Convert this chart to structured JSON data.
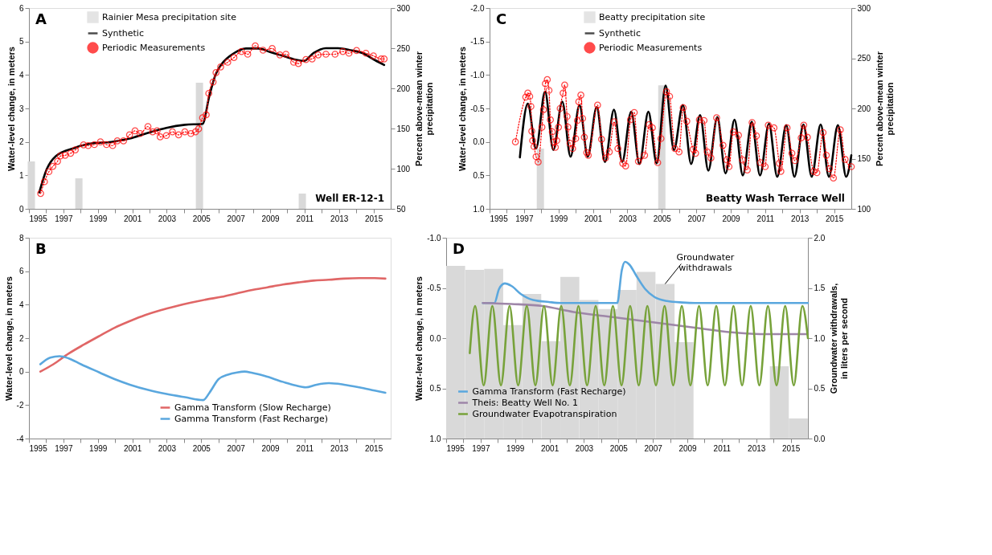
{
  "chart_data": [
    {
      "type": "line",
      "ylabel": "Water-level change, in meters",
      "y2label": "Percent above-mean winter\nprecipitation",
      "annotations": [
        "A",
        "Well ER-12-1"
      ],
      "xlim": [
        1995,
        2016
      ],
      "xticks": [
        1995,
        {
          "value": 1996,
          "label": null
        },
        1997,
        {
          "value": 1998,
          "label": null
        },
        1999,
        {
          "value": 2000,
          "label": null
        },
        2001,
        {
          "value": 2002,
          "label": null
        },
        2003,
        {
          "value": 2004,
          "label": null
        },
        2005,
        {
          "value": 2006,
          "label": null
        },
        2007,
        {
          "value": 2008,
          "label": null
        },
        2009,
        {
          "value": 2010,
          "label": null
        },
        2011,
        {
          "value": 2012,
          "label": null
        },
        2013,
        {
          "value": 2014,
          "label": null
        },
        2015
      ],
      "ylim": [
        0,
        6
      ],
      "yticks": [
        0,
        1,
        2,
        3,
        4,
        5,
        6
      ],
      "y2lim": [
        50,
        300
      ],
      "y2ticks": [
        50,
        100,
        150,
        200,
        250,
        300
      ],
      "legend": "top left",
      "grid": false,
      "series": [
        {
          "name": "Rainier Mesa precipitation site",
          "type": "bar",
          "axis": "y2",
          "color": "#d9d9d9",
          "x": [
            1995.14,
            1997.9,
            2004.9,
            2010.87
          ],
          "values": [
            109,
            88,
            207,
            69
          ]
        },
        {
          "name": "Synthetic",
          "type": "line",
          "color": "#000000",
          "line_style": "solid",
          "marker": "none",
          "x": [
            1995.6,
            1996.03,
            1996.57,
            1997.64,
            1998.7,
            1999.77,
            2000.84,
            2001.9,
            2002.98,
            2004.05,
            2005.08,
            2005.47,
            2005.83,
            2006.18,
            2006.9,
            2007.6,
            2008.32,
            2009.03,
            2009.75,
            2010.46,
            2010.96,
            2011.53,
            2012.24,
            2012.95,
            2013.67,
            2014.38,
            2015.1,
            2015.62
          ],
          "values": [
            0.49,
            1.18,
            1.58,
            1.82,
            1.96,
            2.0,
            2.1,
            2.27,
            2.42,
            2.51,
            2.54,
            3.37,
            4.01,
            4.32,
            4.65,
            4.79,
            4.79,
            4.68,
            4.57,
            4.46,
            4.42,
            4.66,
            4.8,
            4.8,
            4.74,
            4.65,
            4.44,
            4.3
          ]
        },
        {
          "name": "Periodic Measurements",
          "type": "line",
          "color": "#ff0000",
          "line_style": "dotted",
          "marker": "circle",
          "x": [
            1995.68,
            1995.9,
            1996.16,
            1996.39,
            1996.66,
            1996.83,
            1997.1,
            1997.42,
            1997.69,
            1998.17,
            1998.44,
            1998.8,
            1999.15,
            1999.5,
            1999.86,
            2000.13,
            2000.49,
            2000.84,
            2001.16,
            2001.46,
            2001.91,
            2002.18,
            2002.44,
            2002.62,
            2002.98,
            2003.33,
            2003.69,
            2004.05,
            2004.4,
            2004.67,
            2004.85,
            2005.08,
            2005.29,
            2005.44,
            2005.69,
            2005.86,
            2006.13,
            2006.54,
            2006.9,
            2007.34,
            2007.7,
            2008.14,
            2008.59,
            2009.12,
            2009.57,
            2009.92,
            2010.37,
            2010.64,
            2011.08,
            2011.44,
            2011.79,
            2012.24,
            2012.77,
            2013.22,
            2013.58,
            2014.02,
            2014.56,
            2015.0,
            2015.45,
            2015.62
          ],
          "values": [
            0.46,
            0.81,
            1.11,
            1.27,
            1.42,
            1.58,
            1.6,
            1.66,
            1.76,
            1.91,
            1.89,
            1.92,
            2.0,
            1.92,
            1.89,
            2.03,
            2.03,
            2.21,
            2.33,
            2.25,
            2.46,
            2.3,
            2.33,
            2.15,
            2.19,
            2.3,
            2.21,
            2.3,
            2.25,
            2.3,
            2.39,
            2.72,
            2.81,
            3.45,
            3.79,
            4.07,
            4.24,
            4.38,
            4.52,
            4.7,
            4.62,
            4.87,
            4.74,
            4.79,
            4.6,
            4.62,
            4.38,
            4.34,
            4.46,
            4.48,
            4.6,
            4.62,
            4.62,
            4.7,
            4.65,
            4.73,
            4.65,
            4.57,
            4.48,
            4.48
          ]
        }
      ]
    },
    {
      "type": "line",
      "ylabel": "Water-level change, in meters",
      "y2label": "Percent above-mean winter\nprecipitation",
      "annotations": [
        "C",
        "Beatty Wash Terrace Well"
      ],
      "xlim": [
        1995,
        2016
      ],
      "xticks": [
        1995,
        {
          "value": 1996,
          "label": null
        },
        1997,
        {
          "value": 1998,
          "label": null
        },
        1999,
        {
          "value": 2000,
          "label": null
        },
        2001,
        {
          "value": 2002,
          "label": null
        },
        2003,
        {
          "value": 2004,
          "label": null
        },
        2005,
        {
          "value": 2006,
          "label": null
        },
        2007,
        {
          "value": 2008,
          "label": null
        },
        2009,
        {
          "value": 2010,
          "label": null
        },
        2011,
        {
          "value": 2012,
          "label": null
        },
        2013,
        {
          "value": 2014,
          "label": null
        },
        2015
      ],
      "ylim": [
        1.0,
        -2.0
      ],
      "yticks": [
        {
          "value": -2,
          "label": "-2.0"
        },
        {
          "value": -1.5,
          "label": "-1.5"
        },
        {
          "value": -1,
          "label": "-1.0"
        },
        {
          "value": -0.5,
          "label": "-0.5"
        },
        {
          "value": 0,
          "label": "0.0"
        },
        {
          "value": 0.5,
          "label": "0.5"
        },
        {
          "value": 1,
          "label": "1.0"
        }
      ],
      "y2lim": [
        100,
        300
      ],
      "y2ticks": [
        100,
        150,
        200,
        250,
        300
      ],
      "legend": "top",
      "grid": false,
      "series": [
        {
          "name": "Beatty precipitation site",
          "type": "bar",
          "axis": "y2",
          "color": "#d9d9d9",
          "x": [
            1997.95,
            2005.0
          ],
          "values": [
            160,
            223
          ]
        },
        {
          "name": "Synthetic",
          "type": "line",
          "color": "#000000",
          "line_style": "solid",
          "marker": "none",
          "x": [
            1996.76,
            1997.22,
            1997.7,
            1998.22,
            1998.7,
            1999.22,
            1999.7,
            2000.22,
            2000.7,
            2001.22,
            2001.7,
            2002.22,
            2002.7,
            2003.22,
            2003.7,
            2004.22,
            2004.7,
            2005.22,
            2005.7,
            2006.22,
            2006.7,
            2007.22,
            2007.7,
            2008.22,
            2008.7,
            2009.22,
            2009.7,
            2010.22,
            2010.7,
            2011.22,
            2011.7,
            2012.22,
            2012.7,
            2013.22,
            2013.7,
            2014.22,
            2014.7,
            2015.22,
            2015.7,
            2016.0
          ],
          "values": [
            0.23,
            -0.57,
            0.1,
            -0.75,
            0.12,
            -0.6,
            0.22,
            -0.55,
            0.22,
            -0.52,
            0.3,
            -0.48,
            0.3,
            -0.45,
            0.33,
            -0.45,
            0.32,
            -0.84,
            0.12,
            -0.55,
            0.33,
            -0.4,
            0.43,
            -0.37,
            0.47,
            -0.33,
            0.5,
            -0.3,
            0.5,
            -0.27,
            0.52,
            -0.25,
            0.52,
            -0.26,
            0.52,
            -0.26,
            0.52,
            -0.25,
            0.52,
            0.2
          ]
        },
        {
          "name": "Periodic Measurements",
          "type": "line",
          "color": "#ff0000",
          "line_style": "dotted",
          "marker": "circle",
          "x": [
            1996.5,
            1997.1,
            1997.22,
            1997.33,
            1997.4,
            1997.45,
            1997.5,
            1997.58,
            1997.7,
            1997.82,
            1998.04,
            1998.13,
            1998.24,
            1998.35,
            1998.45,
            1998.53,
            1998.64,
            1998.73,
            1998.82,
            1998.9,
            1999.0,
            1999.1,
            1999.27,
            1999.36,
            1999.5,
            1999.55,
            1999.67,
            1999.82,
            2000.0,
            2000.1,
            2000.18,
            2000.3,
            2000.4,
            2000.5,
            2000.64,
            2000.73,
            2001.27,
            2001.5,
            2001.73,
            2001.95,
            2002.24,
            2002.45,
            2002.73,
            2002.9,
            2003.18,
            2003.4,
            2003.64,
            2004.0,
            2004.27,
            2004.45,
            2004.76,
            2004.95,
            2005.27,
            2005.45,
            2005.76,
            2006.0,
            2006.24,
            2006.45,
            2006.82,
            2006.96,
            2007.18,
            2007.45,
            2007.64,
            2007.85,
            2008.18,
            2008.55,
            2008.78,
            2008.9,
            2009.15,
            2009.45,
            2009.69,
            2009.96,
            2010.24,
            2010.49,
            2010.73,
            2011.0,
            2011.18,
            2011.51,
            2011.82,
            2011.91,
            2012.27,
            2012.55,
            2012.73,
            2013.09,
            2013.24,
            2013.45,
            2013.82,
            2014.0,
            2014.36,
            2014.55,
            2014.73,
            2014.96,
            2015.36,
            2015.64,
            2016.0
          ],
          "values": [
            0.0,
            -0.67,
            -0.73,
            -0.68,
            -0.53,
            -0.16,
            -0.02,
            0.07,
            0.22,
            0.3,
            -0.22,
            -0.48,
            -0.87,
            -0.93,
            -0.77,
            -0.33,
            -0.15,
            0.0,
            0.08,
            -0.02,
            -0.22,
            -0.5,
            -0.73,
            -0.85,
            -0.38,
            -0.22,
            0.02,
            0.1,
            -0.05,
            -0.32,
            -0.6,
            -0.7,
            -0.35,
            -0.07,
            0.16,
            0.2,
            -0.55,
            -0.04,
            0.24,
            0.15,
            -0.3,
            0.1,
            0.32,
            0.36,
            -0.33,
            -0.44,
            0.29,
            0.2,
            -0.26,
            -0.21,
            0.31,
            -0.05,
            -0.75,
            -0.68,
            0.1,
            0.15,
            -0.51,
            -0.31,
            0.11,
            0.17,
            -0.33,
            -0.32,
            0.15,
            0.24,
            -0.36,
            0.05,
            0.27,
            0.37,
            -0.15,
            -0.1,
            0.27,
            0.42,
            -0.29,
            -0.09,
            0.31,
            0.37,
            -0.25,
            -0.21,
            0.32,
            0.44,
            -0.21,
            0.17,
            0.28,
            -0.06,
            -0.25,
            -0.07,
            0.44,
            0.46,
            -0.14,
            0.2,
            0.4,
            0.54,
            -0.18,
            0.26,
            0.37
          ]
        }
      ]
    },
    {
      "type": "line",
      "ylabel": "Water-level change, in meters",
      "annotations": [
        "B"
      ],
      "xlim": [
        1995,
        2016
      ],
      "xticks": [
        1995,
        {
          "value": 1996,
          "label": null
        },
        1997,
        {
          "value": 1998,
          "label": null
        },
        1999,
        {
          "value": 2000,
          "label": null
        },
        2001,
        {
          "value": 2002,
          "label": null
        },
        2003,
        {
          "value": 2004,
          "label": null
        },
        2005,
        {
          "value": 2006,
          "label": null
        },
        2007,
        {
          "value": 2008,
          "label": null
        },
        2009,
        {
          "value": 2010,
          "label": null
        },
        2011,
        {
          "value": 2012,
          "label": null
        },
        2013,
        {
          "value": 2014,
          "label": null
        },
        2015
      ],
      "ylim": [
        -4,
        8
      ],
      "yticks": [
        -4,
        -2,
        0,
        2,
        4,
        6,
        8
      ],
      "legend": "bottom right",
      "grid": false,
      "series": [
        {
          "name": "Gamma Transform (Slow Recharge)",
          "color": "#e06666",
          "x": [
            1995.66,
            1996.42,
            1997.31,
            1998.2,
            1999.09,
            1999.97,
            2000.86,
            2001.75,
            2002.64,
            2003.53,
            2004.41,
            2005.3,
            2006.19,
            2007.08,
            2007.97,
            2008.85,
            2009.74,
            2010.63,
            2011.52,
            2012.41,
            2013.29,
            2014.18,
            2015.07,
            2015.69
          ],
          "values": [
            0,
            0.44,
            1.08,
            1.62,
            2.13,
            2.62,
            3.02,
            3.38,
            3.67,
            3.91,
            4.12,
            4.31,
            4.47,
            4.68,
            4.88,
            5.04,
            5.2,
            5.33,
            5.44,
            5.49,
            5.56,
            5.59,
            5.59,
            5.56
          ]
        },
        {
          "name": "Gamma Transform (Fast Recharge)",
          "color": "#5aa7de",
          "x": [
            1995.66,
            1996.24,
            1996.78,
            1997.31,
            1998.02,
            1999.09,
            1999.97,
            2000.86,
            2001.93,
            2002.99,
            2004.06,
            2005.12,
            2005.48,
            2006.01,
            2006.55,
            2007.08,
            2007.52,
            2007.97,
            2008.68,
            2009.74,
            2010.45,
            2011.07,
            2011.7,
            2012.41,
            2013.29,
            2014.18,
            2015.07,
            2015.69
          ],
          "values": [
            0.44,
            0.84,
            0.92,
            0.79,
            0.44,
            -0.05,
            -0.45,
            -0.78,
            -1.1,
            -1.34,
            -1.53,
            -1.7,
            -1.26,
            -0.45,
            -0.18,
            -0.05,
            0,
            -0.08,
            -0.26,
            -0.61,
            -0.82,
            -0.94,
            -0.78,
            -0.69,
            -0.78,
            -0.94,
            -1.13,
            -1.26
          ]
        }
      ]
    },
    {
      "type": "line",
      "ylabel": "Water-level change, in meters",
      "y2label": "Groundwater withdrawals,\nin liters per second",
      "annotations": [
        "D",
        {
          "text": "Groundwater\nwithdrawals",
          "x": 2007.71,
          "y": -0.54
        }
      ],
      "xlim": [
        1995,
        2016
      ],
      "xticks": [
        1995,
        {
          "value": 1996,
          "label": null
        },
        1997,
        {
          "value": 1998,
          "label": null
        },
        1999,
        {
          "value": 2000,
          "label": null
        },
        2001,
        {
          "value": 2002,
          "label": null
        },
        2003,
        {
          "value": 2004,
          "label": null
        },
        2005,
        {
          "value": 2006,
          "label": null
        },
        2007,
        {
          "value": 2008,
          "label": null
        },
        2009,
        {
          "value": 2010,
          "label": null
        },
        2011,
        {
          "value": 2012,
          "label": null
        },
        2013,
        {
          "value": 2014,
          "label": null
        },
        2015
      ],
      "ylim": [
        1.0,
        -1.0
      ],
      "yticks": [
        {
          "value": -1,
          "label": "-1.0"
        },
        {
          "value": -0.5,
          "label": "-0.5"
        },
        {
          "value": 0,
          "label": "0.0"
        },
        {
          "value": 0.5,
          "label": "0.5"
        },
        {
          "value": 1,
          "label": "1.0"
        }
      ],
      "y2lim": [
        0,
        2
      ],
      "y2ticks": [
        {
          "value": 0,
          "label": "0.0"
        },
        {
          "value": 0.5,
          "label": "0.5"
        },
        {
          "value": 1,
          "label": "1.0"
        },
        {
          "value": 1.5,
          "label": "1.5"
        },
        {
          "value": 2,
          "label": "2.0"
        }
      ],
      "legend": "bottom left",
      "grid": false,
      "series": [
        {
          "type": "bar",
          "axis": "y2",
          "color": "#d9d9d9",
          "x": [
            1995.55,
            1996.66,
            1997.76,
            1998.87,
            1999.97,
            2001.08,
            2002.18,
            2003.29,
            2004.39,
            2005.5,
            2006.6,
            2007.71,
            2008.81,
            2009.92,
            2011.02,
            2012.13,
            2013.23,
            2014.34,
            2015.44
          ],
          "values": [
            1.72,
            1.68,
            1.69,
            1.13,
            1.44,
            0.97,
            1.61,
            1.38,
            1.29,
            1.48,
            1.66,
            1.54,
            0.96,
            0,
            0,
            0,
            0,
            0.72,
            0.2
          ]
        },
        {
          "name": "Gamma Transform (Fast Recharge)",
          "color": "#5aa7de",
          "x": [
            1997.13,
            1997.8,
            1998.07,
            1998.4,
            1998.79,
            1999.33,
            2000.05,
            2000.96,
            2001.68,
            2004.93,
            2005.2,
            2005.38,
            2005.65,
            2006.01,
            2006.55,
            2007.09,
            2007.82,
            2008.72,
            2009.44,
            2016.0
          ],
          "values": [
            -0.35,
            -0.35,
            -0.49,
            -0.545,
            -0.52,
            -0.44,
            -0.38,
            -0.36,
            -0.35,
            -0.35,
            -0.68,
            -0.76,
            -0.73,
            -0.63,
            -0.49,
            -0.41,
            -0.37,
            -0.355,
            -0.35,
            -0.35
          ]
        },
        {
          "name": "Theis: Beatty Well No. 1",
          "color": "#9e86a8",
          "x": [
            1997.13,
            1998.79,
            2000.6,
            2002.4,
            2004.2,
            2006.01,
            2007.82,
            2009.62,
            2011.43,
            2013.23,
            2016.0
          ],
          "values": [
            -0.35,
            -0.34,
            -0.32,
            -0.26,
            -0.22,
            -0.18,
            -0.14,
            -0.1,
            -0.06,
            -0.04,
            -0.04
          ]
        },
        {
          "name": "Groundwater Evapotranspiration",
          "color": "#77a23a",
          "x": [
            1996.37,
            1996.68,
            1997.18,
            1997.68,
            1998.18,
            1998.68,
            1999.18,
            1999.68,
            2000.18,
            2000.68,
            2001.18,
            2001.68,
            2002.18,
            2002.68,
            2003.18,
            2003.68,
            2004.18,
            2004.68,
            2005.18,
            2005.68,
            2006.18,
            2006.68,
            2007.18,
            2007.68,
            2008.18,
            2008.68,
            2009.18,
            2009.68,
            2010.18,
            2010.68,
            2011.18,
            2011.68,
            2012.18,
            2012.68,
            2013.18,
            2013.68,
            2014.18,
            2014.68,
            2015.18,
            2015.68,
            2016.0
          ],
          "values": [
            0.15,
            -0.32,
            0.47,
            -0.32,
            0.47,
            -0.32,
            0.47,
            -0.32,
            0.47,
            -0.32,
            0.47,
            -0.32,
            0.47,
            -0.32,
            0.47,
            -0.32,
            0.47,
            -0.32,
            0.47,
            -0.32,
            0.47,
            -0.32,
            0.47,
            -0.32,
            0.47,
            -0.32,
            0.47,
            -0.32,
            0.47,
            -0.32,
            0.47,
            -0.32,
            0.47,
            -0.32,
            0.47,
            -0.32,
            0.47,
            -0.32,
            0.47,
            -0.32,
            0.0
          ]
        }
      ]
    }
  ]
}
